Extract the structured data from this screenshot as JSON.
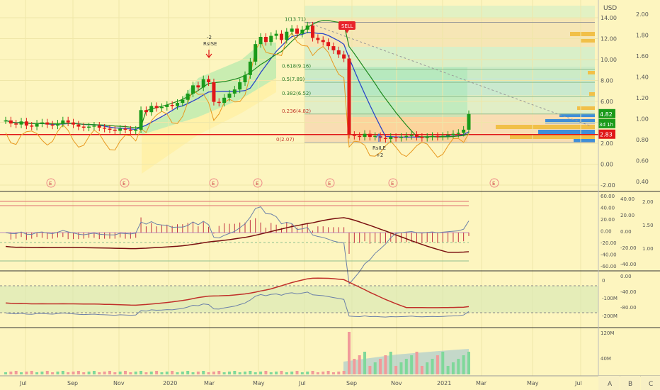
{
  "colors": {
    "background": "#fdf5bf",
    "grid": "#efe6a8",
    "bull": "#1a9a1a",
    "bear": "#e01818",
    "price_line": "#e01818",
    "ma_blue": "#2a46c8",
    "ma_orange": "#e8981e",
    "ma_green": "#1e8a1e",
    "axis_text": "#555555",
    "sell_badge": "#e8232a",
    "last_price_badge": "#1a9a1a",
    "ref_price_badge": "#e01818"
  },
  "header": {
    "currency": "USD"
  },
  "chart_data": [
    {
      "type": "candlestick",
      "pane": "price",
      "currency": "USD",
      "right_axis_ticks": [
        "2.00",
        "1.80",
        "1.60",
        "1.40",
        "1.20",
        "1.00",
        "0.80",
        "0.60",
        "0.40"
      ],
      "left_axis_ticks": [
        "14.00",
        "12.00",
        "10.00",
        "8.00",
        "6.00",
        "4.00",
        "2.00",
        "0.00",
        "-2.00"
      ],
      "ylim_price": [
        -2,
        14.5
      ],
      "time_axis_labels": [
        "Jul",
        "Sep",
        "Nov",
        "2020",
        "Mar",
        "May",
        "Jul",
        "Sep",
        "Nov",
        "2021",
        "Mar",
        "May",
        "Jul"
      ],
      "fibonacci_levels": [
        {
          "label": "1(13.71)",
          "value": 13.71
        },
        {
          "label": "0.618(9.16)",
          "value": 9.16
        },
        {
          "label": "0.5(7.89)",
          "value": 7.89
        },
        {
          "label": "0.382(6.52)",
          "value": 6.52
        },
        {
          "label": "0.236(4.82)",
          "value": 4.82
        },
        {
          "label": "0(2.07)",
          "value": 2.07
        }
      ],
      "price_badges": [
        {
          "label": "4.82",
          "value": 4.82,
          "kind": "last"
        },
        {
          "label": "3d 1h",
          "kind": "countdown"
        },
        {
          "label": "2.83",
          "value": 2.83,
          "kind": "reference"
        }
      ],
      "annotations": [
        {
          "label": "-2",
          "at": "2020-02"
        },
        {
          "label": "RsISE",
          "at": "2020-02"
        },
        {
          "label": "SELL",
          "at": "2020-08"
        },
        {
          "label": "RsILE",
          "at": "2020-10"
        },
        {
          "label": "+2",
          "at": "2020-10"
        }
      ],
      "earnings_markers": [
        "E",
        "E",
        "E",
        "E",
        "E",
        "E",
        "E"
      ],
      "close_series": [
        4.2,
        3.9,
        3.8,
        4.1,
        3.7,
        3.6,
        3.9,
        4.0,
        3.8,
        3.7,
        3.9,
        4.2,
        4.0,
        3.8,
        3.6,
        3.5,
        3.6,
        3.7,
        3.5,
        3.4,
        3.3,
        3.2,
        3.4,
        3.3,
        3.2,
        3.3,
        5.2,
        5.0,
        5.6,
        5.4,
        5.5,
        5.7,
        5.6,
        5.9,
        6.2,
        6.8,
        7.6,
        7.4,
        8.2,
        7.9,
        6.0,
        5.9,
        6.4,
        6.8,
        7.2,
        7.9,
        8.6,
        9.9,
        11.6,
        12.3,
        11.8,
        12.4,
        12.6,
        12.0,
        12.8,
        13.1,
        12.6,
        13.0,
        13.4,
        12.2,
        12.0,
        11.8,
        11.4,
        11.0,
        10.6,
        10.2,
        2.8,
        2.7,
        2.6,
        2.9,
        2.6,
        2.7,
        2.5,
        2.4,
        2.6,
        2.5,
        2.6,
        2.7,
        2.8,
        2.6,
        2.5,
        2.6,
        2.7,
        2.6,
        2.7,
        2.8,
        2.9,
        3.0,
        3.3,
        4.82
      ]
    },
    {
      "type": "line",
      "pane": "oscillator",
      "right_axis_ticks": [
        "40.00",
        "20.00",
        "0.00",
        "-20.00",
        "-40.00"
      ],
      "left_axis_ticks": [
        "60.00",
        "40.00",
        "20.00",
        "0.00",
        "-20.00",
        "-40.00",
        "-60.00"
      ],
      "far_right_axis_ticks": [
        "2.00",
        "1.50",
        "1.00"
      ],
      "ylim": [
        -60,
        60
      ]
    },
    {
      "type": "area",
      "pane": "momentum",
      "right_axis_ticks": [
        "0.00",
        "-40.00",
        "-80.00"
      ],
      "left_axis_ticks": [
        "0",
        "-100M",
        "-200M"
      ]
    },
    {
      "type": "bar",
      "pane": "volume",
      "left_axis_ticks": [
        "120M",
        "40M"
      ]
    }
  ],
  "bottom_buttons": [
    "A",
    "B",
    "C"
  ]
}
